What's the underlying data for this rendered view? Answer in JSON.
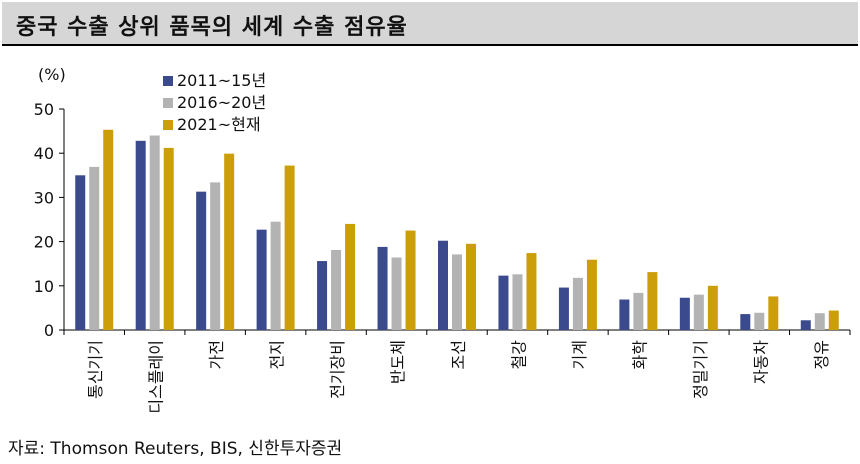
{
  "title": "중국 수출 상위 품목의 세계 수출 점유율",
  "source": "자료: Thomson Reuters, BIS, 신한투자증권",
  "colors": {
    "s1": "#3b4a8c",
    "s2": "#b3b3b3",
    "s3": "#cc9e0a"
  },
  "chart_data": {
    "type": "bar",
    "unit_label": "(%)",
    "categories": [
      "통신기기",
      "디스플레이",
      "가전",
      "전지",
      "전기장비",
      "반도체",
      "조선",
      "철강",
      "기계",
      "화학",
      "정밀기기",
      "자동차",
      "정유"
    ],
    "series": [
      {
        "name": "2011~15년",
        "values": [
          35,
          42.8,
          31.3,
          22.7,
          15.6,
          18.8,
          20.2,
          12.3,
          9.6,
          6.9,
          7.3,
          3.6,
          2.2
        ]
      },
      {
        "name": "2016~20년",
        "values": [
          36.9,
          44,
          33.4,
          24.5,
          18.1,
          16.4,
          17.1,
          12.6,
          11.8,
          8.4,
          8,
          3.9,
          3.8
        ]
      },
      {
        "name": "2021~현재",
        "values": [
          45.3,
          41.2,
          39.9,
          37.2,
          24,
          22.5,
          19.5,
          17.4,
          15.9,
          13.1,
          10,
          7.6,
          4.4
        ]
      }
    ],
    "ylim": [
      0,
      50
    ],
    "yticks": [
      0,
      10,
      20,
      30,
      40,
      50
    ],
    "legend_position": "top-left",
    "grid": false
  }
}
